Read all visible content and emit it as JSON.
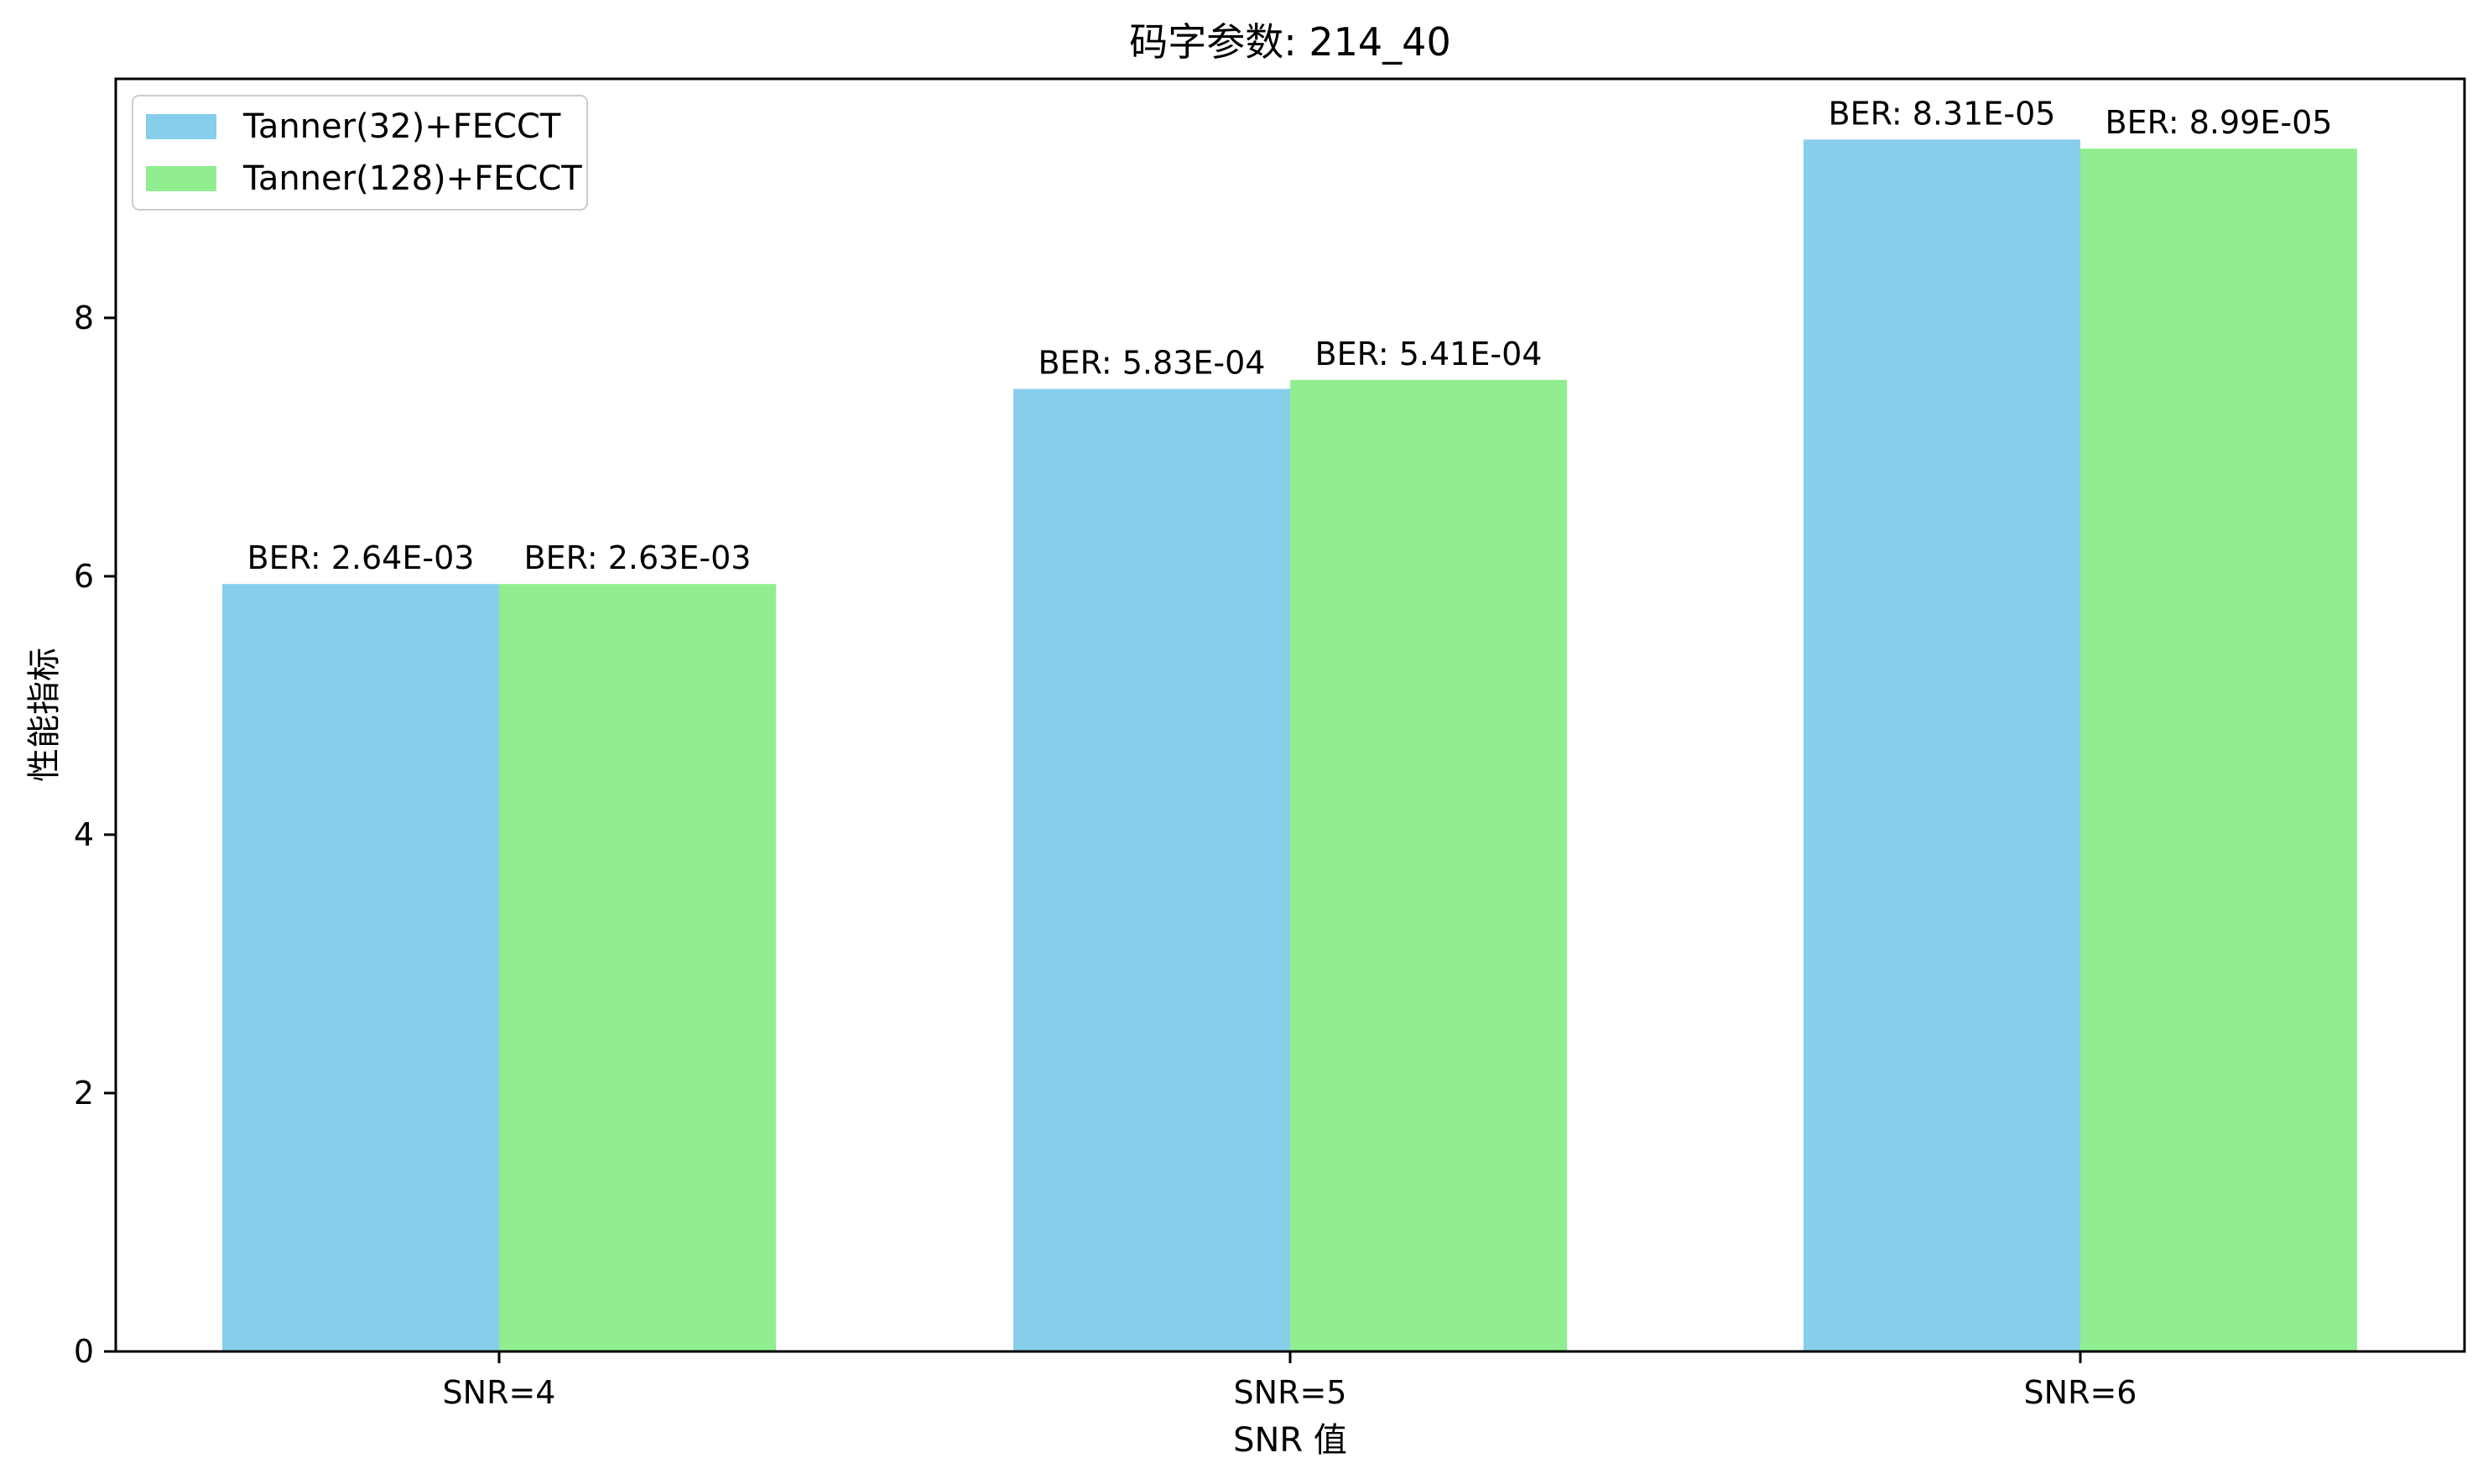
{
  "chart_data": {
    "type": "bar",
    "title": "码字参数: 214_40",
    "xlabel": "SNR 值",
    "ylabel": "性能指标",
    "categories": [
      "SNR=4",
      "SNR=5",
      "SNR=6"
    ],
    "ylim": [
      0,
      9.85
    ],
    "yticks": [
      0,
      2,
      4,
      6,
      8
    ],
    "grid": false,
    "legend_position": "top-left",
    "series": [
      {
        "name": "Tanner(32)+FECCT",
        "color": "#87CEEB",
        "values": [
          5.94,
          7.45,
          9.38
        ],
        "labels": [
          "BER: 2.64E-03",
          "BER: 5.83E-04",
          "BER: 8.31E-05"
        ]
      },
      {
        "name": "Tanner(128)+FECCT",
        "color": "#90EE90",
        "values": [
          5.94,
          7.52,
          9.31
        ],
        "labels": [
          "BER: 2.63E-03",
          "BER: 5.41E-04",
          "BER: 8.99E-05"
        ]
      }
    ]
  }
}
